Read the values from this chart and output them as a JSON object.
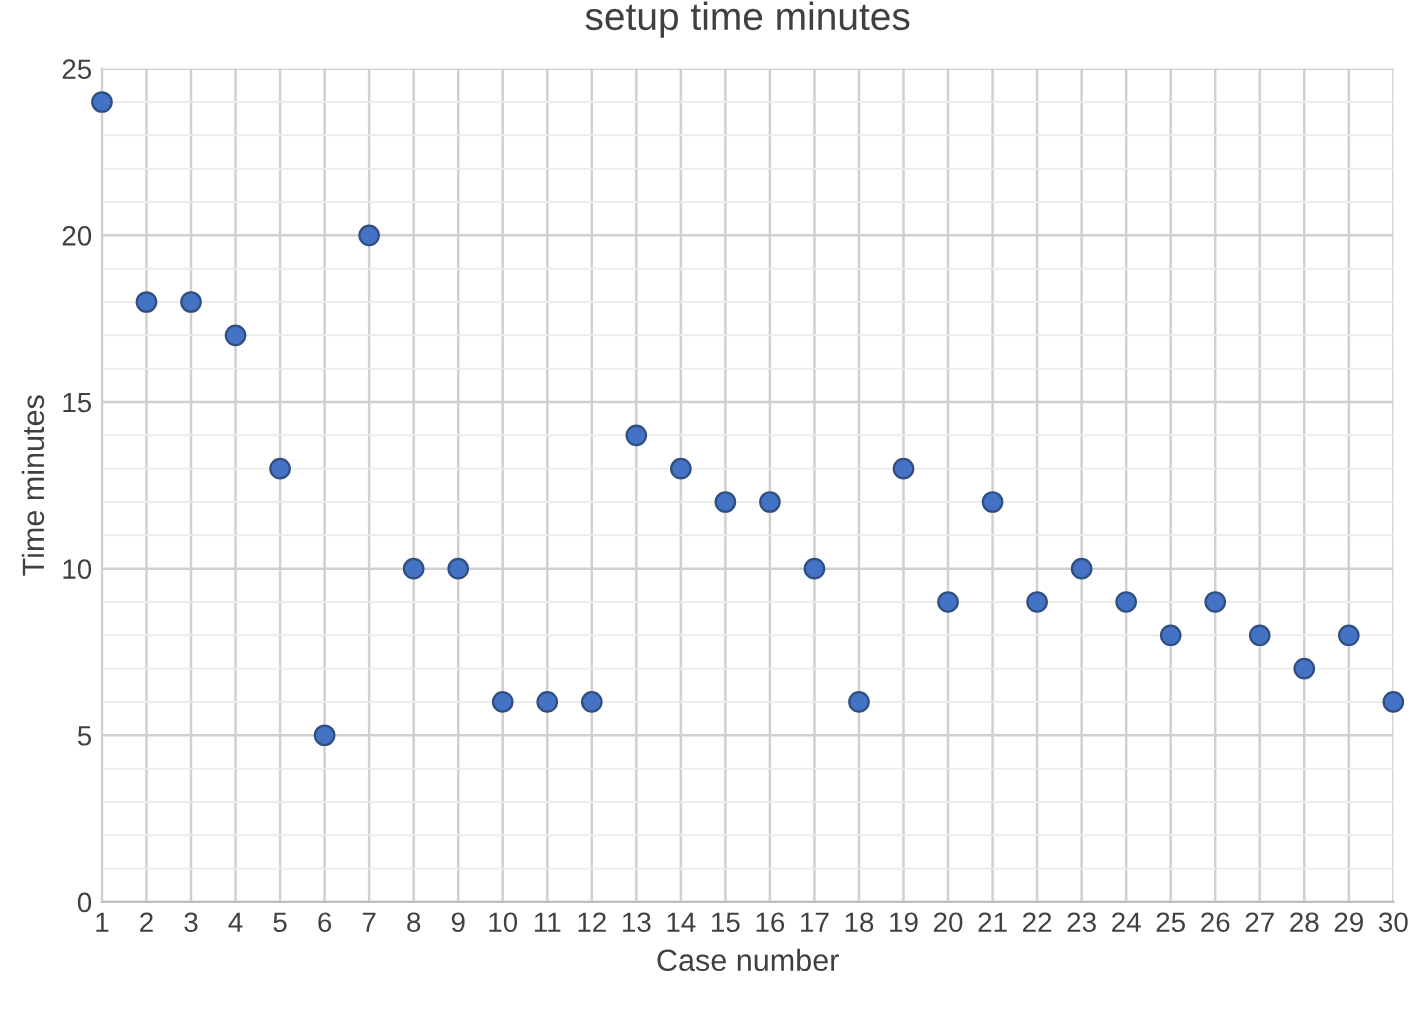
{
  "chart_data": {
    "type": "scatter",
    "title": "setup time minutes",
    "xlabel": "Case number",
    "ylabel": "Time minutes",
    "x": [
      1,
      2,
      3,
      4,
      5,
      6,
      7,
      8,
      9,
      10,
      11,
      12,
      13,
      14,
      15,
      16,
      17,
      18,
      19,
      20,
      21,
      22,
      23,
      24,
      25,
      26,
      27,
      28,
      29,
      30
    ],
    "series": [
      {
        "color": "#4472c4",
        "values": [
          24,
          18,
          18,
          17,
          13,
          5,
          20,
          10,
          10,
          6,
          6,
          6,
          14,
          13,
          12,
          12,
          10,
          6,
          13,
          9,
          12,
          9,
          10,
          9,
          8,
          9,
          8,
          7,
          8,
          6
        ]
      }
    ],
    "xlim": [
      1,
      30
    ],
    "xticks": [
      1,
      2,
      3,
      4,
      5,
      6,
      7,
      8,
      9,
      10,
      11,
      12,
      13,
      14,
      15,
      16,
      17,
      18,
      19,
      20,
      21,
      22,
      23,
      24,
      25,
      26,
      27,
      28,
      29,
      30
    ],
    "ylim": [
      0,
      25
    ],
    "yticks": [
      0,
      5,
      10,
      15,
      20,
      25
    ],
    "grid": true,
    "marker": "circle"
  }
}
